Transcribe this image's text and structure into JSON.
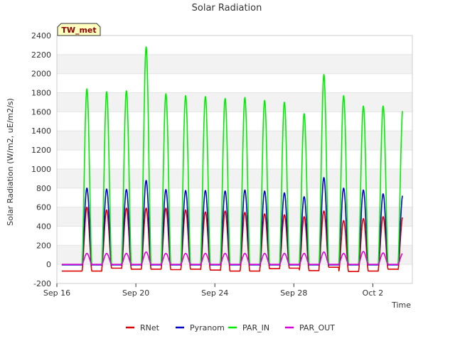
{
  "chart_data": {
    "type": "line",
    "title": "Solar Radiation",
    "xlabel": "Time",
    "ylabel": "Solar Radiation (W/m2, uE/m2/s)",
    "station_label": "TW_met",
    "ylim": [
      -200,
      2400
    ],
    "yticks": [
      -200,
      0,
      200,
      400,
      600,
      800,
      1000,
      1200,
      1400,
      1600,
      1800,
      2000,
      2200,
      2400
    ],
    "xlim": [
      "2019-09-16",
      "2019-10-04"
    ],
    "xticks": [
      {
        "date": "2019-09-16",
        "label": "Sep 16"
      },
      {
        "date": "2019-09-20",
        "label": "Sep 20"
      },
      {
        "date": "2019-09-24",
        "label": "Sep 24"
      },
      {
        "date": "2019-09-28",
        "label": "Sep 28"
      },
      {
        "date": "2019-10-02",
        "label": "Oct 2"
      }
    ],
    "grid": "horizontal-bands",
    "legend_placement": "bottom",
    "data_start": "2019-09-16T06:00",
    "data_end": "2019-10-03T12:00",
    "days": [
      "2019-09-17",
      "2019-09-18",
      "2019-09-19",
      "2019-09-20",
      "2019-09-21",
      "2019-09-22",
      "2019-09-23",
      "2019-09-24",
      "2019-09-25",
      "2019-09-26",
      "2019-09-27",
      "2019-09-28",
      "2019-09-29",
      "2019-09-30",
      "2019-10-01",
      "2019-10-02",
      "2019-10-03"
    ],
    "series": [
      {
        "name": "RNet",
        "color": "#dd0000",
        "night_level": [
          -70,
          -40,
          -50,
          -50,
          -55,
          -50,
          -60,
          -70,
          -70,
          -45,
          -40,
          -65,
          -30,
          -75,
          -70,
          -50,
          -60
        ],
        "daily_peak": [
          600,
          570,
          590,
          590,
          590,
          570,
          550,
          560,
          545,
          530,
          520,
          500,
          560,
          460,
          480,
          500,
          500
        ]
      },
      {
        "name": "Pyranom",
        "color": "#0000cc",
        "night_level": [
          -5,
          -5,
          -5,
          -5,
          -5,
          -5,
          -5,
          -5,
          -5,
          -5,
          -5,
          -5,
          -5,
          -5,
          -5,
          -5,
          -5
        ],
        "daily_peak": [
          800,
          790,
          785,
          880,
          785,
          775,
          775,
          770,
          780,
          770,
          750,
          710,
          910,
          800,
          780,
          740,
          730
        ]
      },
      {
        "name": "PAR_IN",
        "color": "#00ee00",
        "night_level": [
          0,
          0,
          0,
          0,
          0,
          0,
          0,
          0,
          0,
          0,
          0,
          0,
          0,
          0,
          0,
          0,
          0
        ],
        "daily_peak": [
          1840,
          1810,
          1820,
          2280,
          1790,
          1770,
          1760,
          1740,
          1750,
          1720,
          1700,
          1580,
          1990,
          1770,
          1660,
          1660,
          1630
        ]
      },
      {
        "name": "PAR_OUT",
        "color": "#dd00dd",
        "night_level": [
          0,
          0,
          0,
          0,
          0,
          0,
          0,
          0,
          0,
          0,
          0,
          0,
          0,
          0,
          0,
          0,
          0
        ],
        "daily_peak": [
          115,
          115,
          115,
          130,
          115,
          115,
          115,
          115,
          115,
          115,
          115,
          115,
          130,
          115,
          135,
          120,
          115
        ]
      }
    ]
  }
}
